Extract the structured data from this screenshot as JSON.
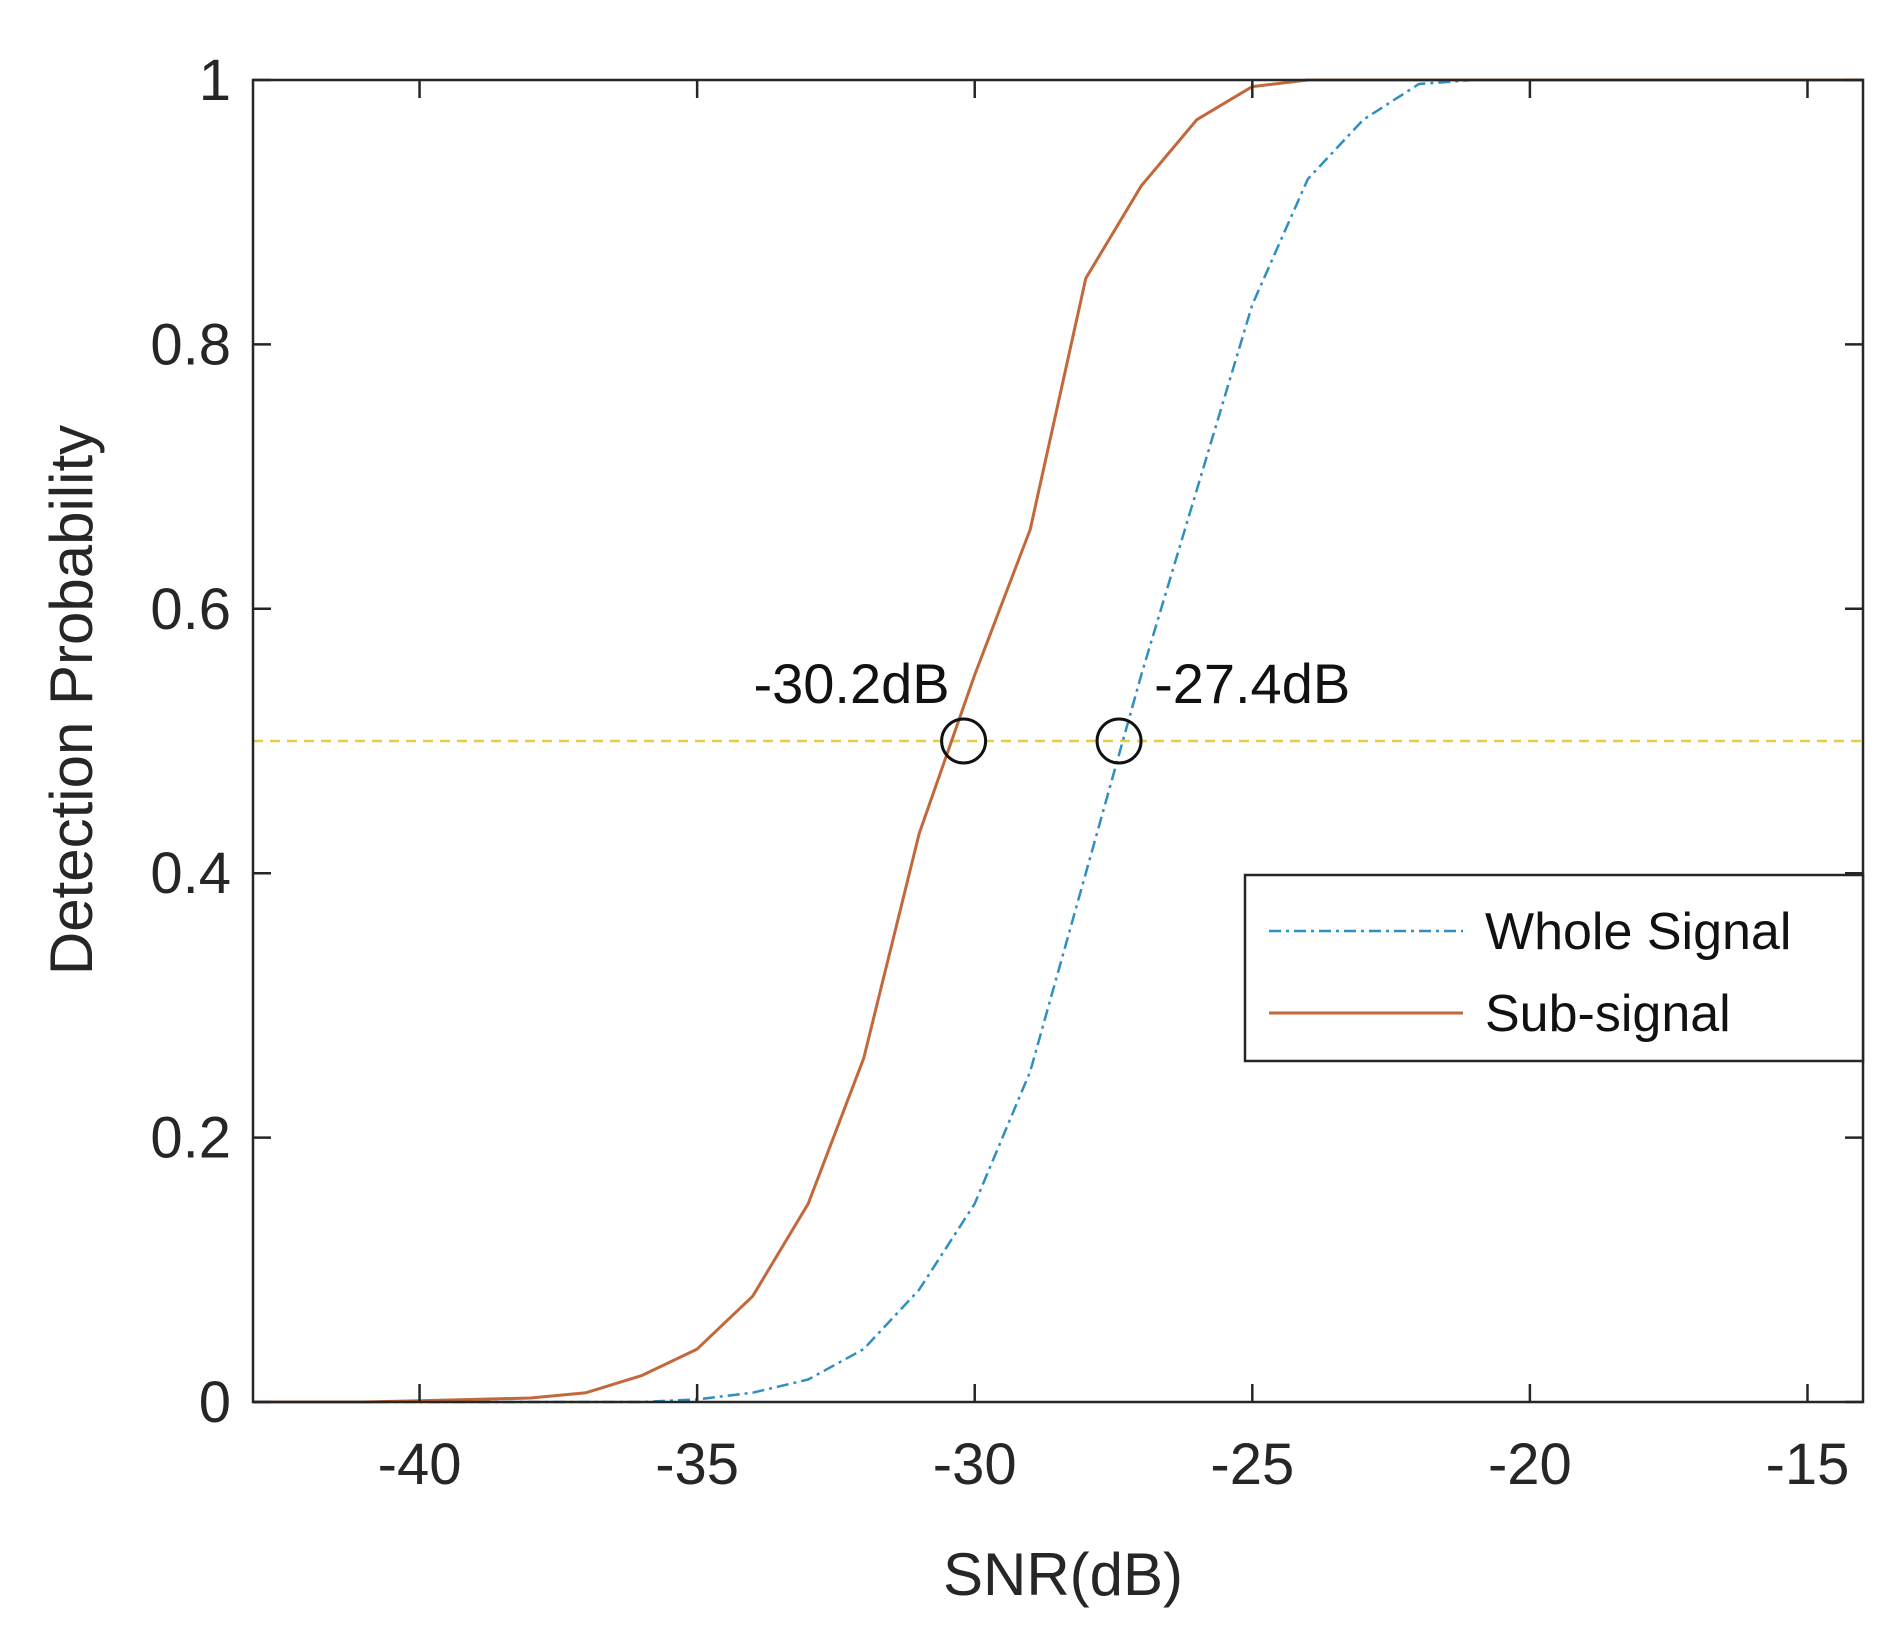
{
  "chart_data": {
    "type": "line",
    "title": "",
    "xlabel": "SNR(dB)",
    "ylabel": "Detection Probability",
    "xlim": [
      -43,
      -14
    ],
    "ylim": [
      0,
      1
    ],
    "xticks": [
      -40,
      -35,
      -30,
      -25,
      -20,
      -15
    ],
    "xtick_labels": [
      "-40",
      "-35",
      "-30",
      "-25",
      "-20",
      "-15"
    ],
    "yticks": [
      0,
      0.2,
      0.4,
      0.6,
      0.8,
      1
    ],
    "ytick_labels": [
      "0",
      "0.2",
      "0.4",
      "0.6",
      "0.8",
      "1"
    ],
    "grid": false,
    "legend_position": "right, just below middle",
    "series": [
      {
        "name": "Whole Signal",
        "style": "dash-dot",
        "color": "#2e8fc0",
        "x": [
          -43,
          -42,
          -41,
          -40,
          -39,
          -38,
          -37,
          -36,
          -35,
          -34,
          -33,
          -32,
          -31,
          -30,
          -29,
          -28,
          -27,
          -26,
          -25,
          -24,
          -23,
          -22,
          -21,
          -20,
          -19,
          -18,
          -17,
          -16,
          -15,
          -14
        ],
        "y": [
          0,
          0,
          0,
          0,
          0,
          0,
          0,
          0,
          0.002,
          0.007,
          0.017,
          0.04,
          0.085,
          0.15,
          0.25,
          0.4,
          0.55,
          0.69,
          0.83,
          0.925,
          0.97,
          0.997,
          1,
          1,
          1,
          1,
          1,
          1,
          1,
          1
        ]
      },
      {
        "name": "Sub-signal",
        "style": "solid",
        "color": "#c2683a",
        "x": [
          -43,
          -42,
          -41,
          -40,
          -39,
          -38,
          -37,
          -36,
          -35,
          -34,
          -33,
          -32,
          -31,
          -30,
          -29,
          -28,
          -27,
          -26,
          -25,
          -24,
          -23,
          -22,
          -21,
          -20,
          -19,
          -18,
          -17,
          -16,
          -15,
          -14
        ],
        "y": [
          0,
          0,
          0,
          0.001,
          0.002,
          0.003,
          0.007,
          0.02,
          0.04,
          0.08,
          0.15,
          0.26,
          0.43,
          0.55,
          0.66,
          0.85,
          0.92,
          0.97,
          0.995,
          1,
          1,
          1,
          1,
          1,
          1,
          1,
          1,
          1,
          1,
          1
        ]
      }
    ],
    "reference_line": {
      "y": 0.5,
      "style": "dashed",
      "color": "#e5cf3f"
    },
    "annotations": [
      {
        "text": "-30.2dB",
        "x": -30.2,
        "y": 0.5,
        "marker": "circle"
      },
      {
        "text": "-27.4dB",
        "x": -27.4,
        "y": 0.5,
        "marker": "circle"
      }
    ]
  }
}
